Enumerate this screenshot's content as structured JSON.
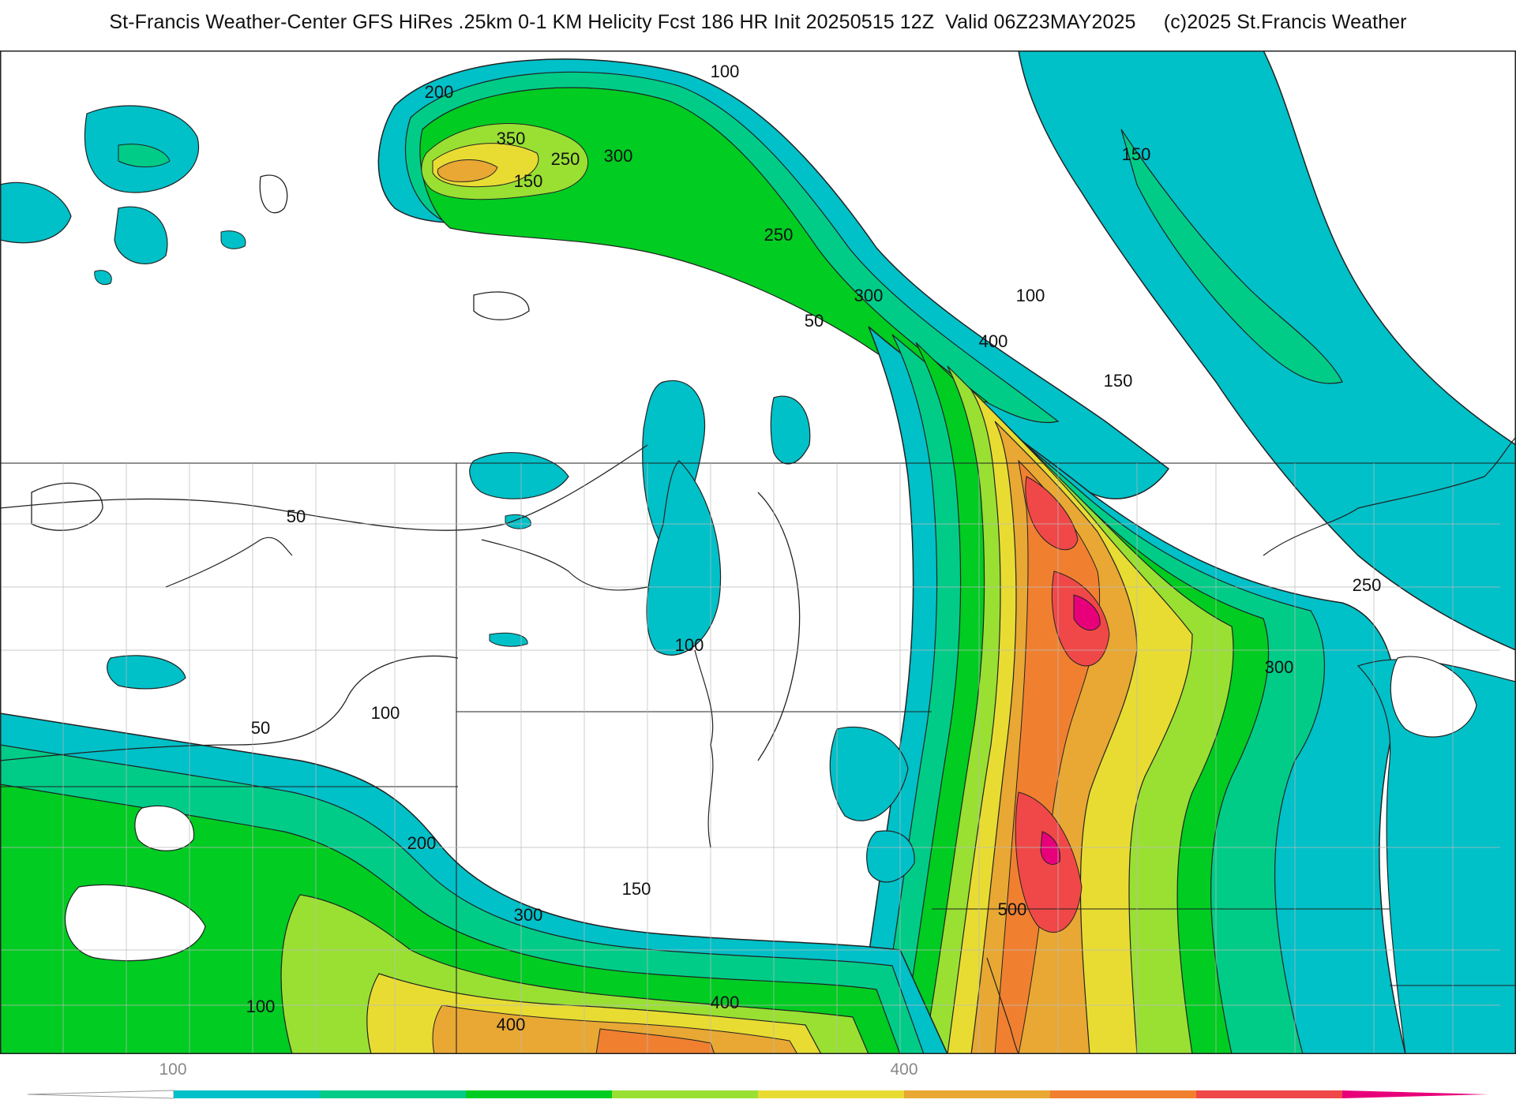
{
  "title": {
    "main": "St-Francis Weather-Center GFS HiRes .25km 0-1 KM Helicity Fcst 186 HR Init 20250515 12Z  Valid 06Z23MAY2025",
    "copyright": "(c)2025 St.Francis Weather"
  },
  "contour_labels": [
    "100",
    "200",
    "350",
    "250",
    "300",
    "150",
    "250",
    "300",
    "50",
    "100",
    "400",
    "150",
    "150",
    "50",
    "100",
    "250",
    "300",
    "50",
    "100",
    "200",
    "150",
    "300",
    "500",
    "400",
    "400",
    "100"
  ],
  "colorbar": {
    "tick_labels": [
      "100",
      "400"
    ],
    "levels": [
      50,
      100,
      150,
      200,
      250,
      300,
      350,
      400,
      450,
      500,
      550
    ],
    "colors": [
      "#ffffff",
      "#00c0c8",
      "#00cc88",
      "#00cc22",
      "#99e033",
      "#e8dc33",
      "#e8a833",
      "#f08030",
      "#f04848",
      "#e8007a"
    ]
  },
  "colors": {
    "cyan": "#00c0c8",
    "teal": "#00cc88",
    "green": "#00cc22",
    "lime": "#99e033",
    "yellow": "#e8dc33",
    "gold": "#e8a833",
    "orange": "#f08030",
    "red": "#f04848",
    "magenta": "#e8007a"
  }
}
